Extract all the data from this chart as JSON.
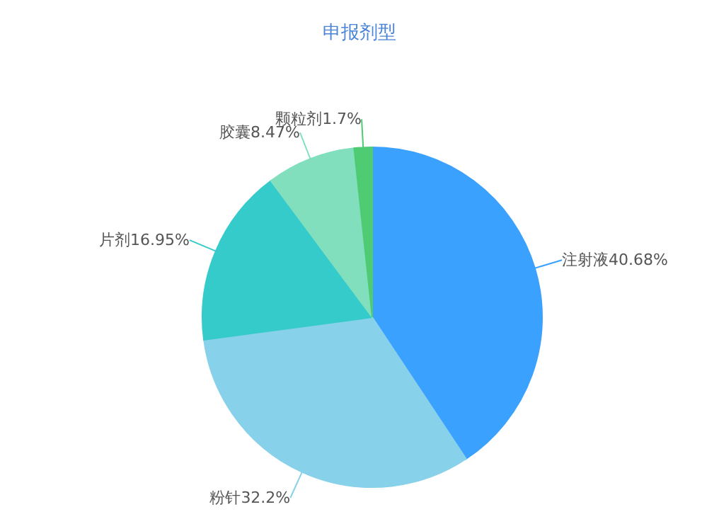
{
  "chart_data": {
    "type": "pie",
    "title": "申报剂型",
    "categories": [
      "注射液",
      "粉针",
      "片剂",
      "胶囊",
      "颗粒剂"
    ],
    "values": [
      40.68,
      32.2,
      16.95,
      8.47,
      1.7
    ],
    "value_labels": [
      "40.68%",
      "32.2%",
      "16.95%",
      "8.47%",
      "1.7%"
    ],
    "colors": [
      "#3ba1ff",
      "#88d1ea",
      "#36cbcb",
      "#82dfbe",
      "#4ecb73"
    ],
    "legend": false
  }
}
